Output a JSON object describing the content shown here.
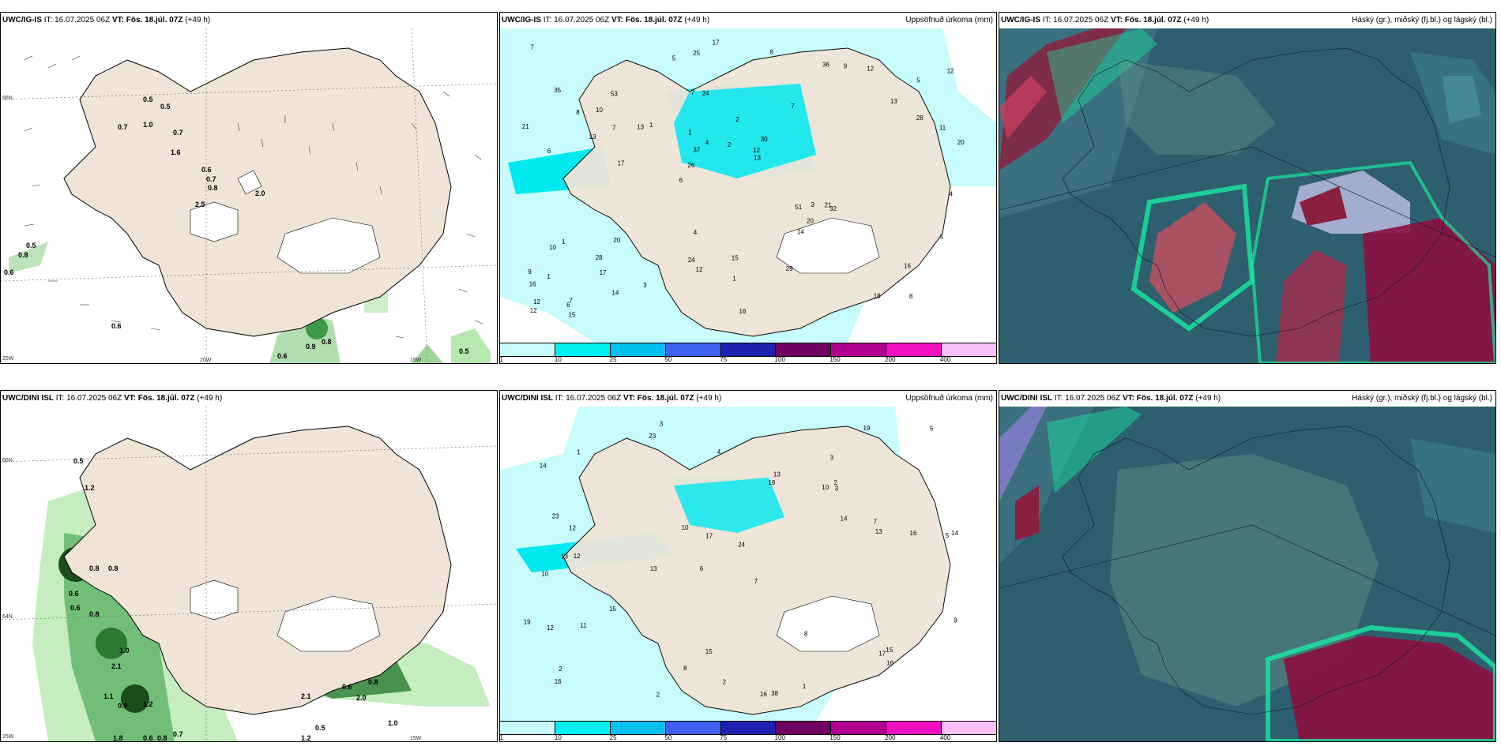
{
  "panels": {
    "p1": {
      "model": "UWC/IG-IS",
      "it": "IT: 16.07.2025 06Z",
      "vt": "VT: Fös. 18.júl. 07Z",
      "lead": "(+49 h)",
      "right": ""
    },
    "p2": {
      "model": "UWC/IG-IS",
      "it": "IT: 16.07.2025 06Z",
      "vt": "VT: Fös. 18.júl. 07Z",
      "lead": "(+49 h)",
      "right": "Uppsöfnuð úrkoma (mm)"
    },
    "p3": {
      "model": "UWC/IG-IS",
      "it": "IT: 16.07.2025 06Z",
      "vt": "VT: Fös. 18.júl. 07Z",
      "lead": "(+49 h)",
      "right": "Háský (gr.), miðský (fj.bl.) og lágský (bl.)"
    },
    "p4": {
      "model": "UWC/DINI ISL",
      "it": "IT: 16.07.2025 06Z",
      "vt": "VT: Fös. 18.júl. 07Z",
      "lead": "(+49 h)",
      "right": ""
    },
    "p5": {
      "model": "UWC/DINI ISL",
      "it": "IT: 16.07.2025 06Z",
      "vt": "VT: Fös. 18.júl. 07Z",
      "lead": "(+49 h)",
      "right": "Uppsöfnuð úrkoma (mm)"
    },
    "p6": {
      "model": "UWC/DINI ISL",
      "it": "IT: 16.07.2025 06Z",
      "vt": "VT: Fös. 18.júl. 07Z",
      "lead": "(+49 h)",
      "right": "Háský (gr.), miðský (fj.bl.) og lágský (bl.)"
    }
  },
  "edge_labels": {
    "lat66": "66N",
    "lat64": "64N",
    "lon25": "25W",
    "lon20": "20W",
    "lon15": "15W"
  },
  "colorbar": {
    "labels": [
      "1",
      "10",
      "25",
      "50",
      "75",
      "100",
      "150",
      "200",
      "400"
    ],
    "colors": [
      "#c8fbfb",
      "#00f0f0",
      "#00c0f0",
      "#4060f0",
      "#2020b0",
      "#700060",
      "#b00090",
      "#f010c0",
      "#f8c0f8"
    ]
  },
  "precip_top": [
    "8",
    "6",
    "5",
    "6",
    "7",
    "7",
    "7",
    "2",
    "1",
    "1",
    "16",
    "17",
    "24",
    "30",
    "32",
    "35",
    "25",
    "20",
    "51",
    "28",
    "26",
    "24",
    "37",
    "53",
    "36",
    "20",
    "18",
    "16",
    "21",
    "16",
    "13",
    "13",
    "14",
    "14",
    "11",
    "12",
    "12",
    "12",
    "13",
    "10",
    "13",
    "12",
    "20",
    "29",
    "28",
    "15",
    "12",
    "15",
    "12",
    "17",
    "17",
    "21",
    "10",
    "9",
    "6",
    "8",
    "5",
    "4",
    "5",
    "4",
    "3",
    "3",
    "7",
    "9",
    "7",
    "8",
    "4",
    "1",
    "1",
    "2",
    "1"
  ],
  "precip_bot": [
    "3",
    "3",
    "5",
    "6",
    "7",
    "12",
    "14",
    "10",
    "10",
    "19",
    "24",
    "16",
    "23",
    "13",
    "16",
    "38",
    "15",
    "19",
    "14",
    "15",
    "12",
    "13",
    "14",
    "16",
    "19",
    "23",
    "17",
    "13",
    "15",
    "12",
    "17",
    "13",
    "11",
    "10",
    "8",
    "9",
    "7",
    "8",
    "5",
    "4",
    "2",
    "2",
    "1",
    "1",
    "2",
    "3",
    "16",
    "2"
  ],
  "rain_top": [
    "0.5",
    "0.5",
    "0.7",
    "1.0",
    "0.7",
    "1.6",
    "0.6",
    "0.7",
    "0.8",
    "2.0",
    "2.5",
    "0.6",
    "0.5",
    "0.8",
    "0.6",
    "0.9",
    "0.8",
    "0.6",
    "0.5"
  ],
  "rain_bot": [
    "0.5",
    "1.2",
    "0.6",
    "0.8",
    "0.8",
    "0.6",
    "0.8",
    "1.1",
    "0.9",
    "1.2",
    "0.7",
    "0.8",
    "0.6",
    "1.8",
    "1.2",
    "2.1",
    "2.0",
    "0.8",
    "0.6",
    "1.0",
    "0.5",
    "2.1",
    "1.0"
  ]
}
